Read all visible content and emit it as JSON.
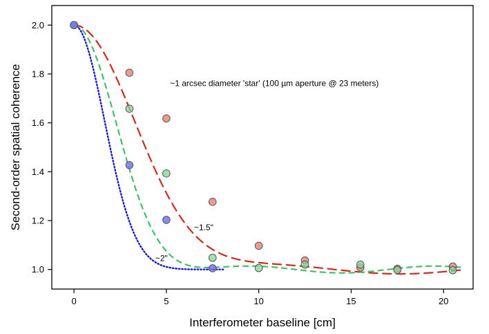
{
  "chart_data": {
    "type": "scatter",
    "xlabel": "Interferometer baseline [cm]",
    "ylabel": "Second-order spatial coherence",
    "xlim": [
      -1.2,
      21.6
    ],
    "ylim": [
      0.92,
      2.08
    ],
    "xticks": [
      0,
      5,
      10,
      15,
      20
    ],
    "yticks": [
      1.0,
      1.2,
      1.4,
      1.6,
      1.8,
      2.0
    ],
    "xtick_labels": [
      "0",
      "5",
      "10",
      "15",
      "20"
    ],
    "ytick_labels": [
      "1.0",
      "1.2",
      "1.4",
      "1.6",
      "1.8",
      "2.0"
    ],
    "grid": false,
    "series": [
      {
        "name": "",
        "color": "#d9534a",
        "fill": "rgba(230,120,110,0.75)",
        "points": [
          [
            0,
            2.0
          ],
          [
            3,
            1.805
          ],
          [
            5,
            1.618
          ],
          [
            7.5,
            1.277
          ],
          [
            10,
            1.097
          ],
          [
            12.5,
            1.037
          ],
          [
            15.5,
            1.008
          ],
          [
            17.5,
            1.003
          ],
          [
            20.5,
            1.012
          ]
        ],
        "fit": {
          "style": "long-dash",
          "color": "#cc2a1a",
          "sigma": 4.7,
          "period": 14.2,
          "amp": 0.018,
          "x_range": [
            0,
            21
          ]
        }
      },
      {
        "name": "",
        "color": "#3a9a5a",
        "fill": "rgba(130,215,150,0.75)",
        "points": [
          [
            0,
            2.0
          ],
          [
            3,
            1.658
          ],
          [
            5,
            1.393
          ],
          [
            7.5,
            1.048
          ],
          [
            10,
            1.006
          ],
          [
            12.5,
            1.02
          ],
          [
            15.5,
            1.02
          ],
          [
            17.5,
            0.998
          ],
          [
            20.5,
            0.997
          ]
        ],
        "fit": {
          "style": "dash",
          "color": "#3fbf6a",
          "sigma": 3.2,
          "period": 10.0,
          "amp": 0.014,
          "x_range": [
            0,
            21
          ]
        }
      },
      {
        "name": "",
        "color": "#3030b0",
        "fill": "rgba(110,110,235,0.8)",
        "points": [
          [
            0,
            2.0
          ],
          [
            3,
            1.427
          ],
          [
            5,
            1.203
          ],
          [
            7.5,
            1.005
          ]
        ],
        "fit": {
          "style": "dot",
          "color": "#1a1acc",
          "sigma": 2.35,
          "x_range": [
            0,
            8.1
          ]
        }
      }
    ],
    "annotations": [
      {
        "text": "~1 arcsec diameter 'star' (100 µm aperture @ 23 meters)",
        "x": 5.2,
        "y": 1.75
      },
      {
        "text": "~1.5\"",
        "x": 6.5,
        "y": 1.16
      },
      {
        "text": "~2\"",
        "x": 4.4,
        "y": 1.035
      }
    ]
  }
}
